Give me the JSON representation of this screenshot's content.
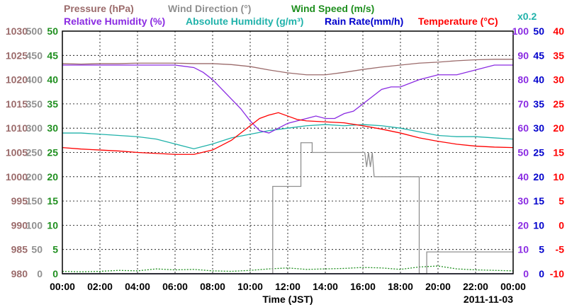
{
  "chart_data": {
    "type": "line",
    "date": "2011-11-03",
    "x_label": "Time (JST)",
    "x_ticks": [
      "00:00",
      "02:00",
      "04:00",
      "06:00",
      "08:00",
      "10:00",
      "12:00",
      "14:00",
      "16:00",
      "18:00",
      "20:00",
      "22:00",
      "00:00"
    ],
    "x_range_hours": [
      0,
      24
    ],
    "grid": true,
    "legend": {
      "row1": [
        {
          "text": "Pressure (hPa)",
          "color": "#9b6b6b"
        },
        {
          "text": "Wind Direction (°)",
          "color": "#909090"
        },
        {
          "text": "Wind Speed (m/s)",
          "color": "#1f8f1f"
        }
      ],
      "row2": [
        {
          "text": "Relative Humidity (%)",
          "color": "#8a2be2"
        },
        {
          "text": "Absolute Humidity (g/m³)",
          "color": "#20b2aa"
        },
        {
          "text": "Rain Rate(mm/h)",
          "color": "#0000cc"
        },
        {
          "text": "Temperature (°C)",
          "color": "#ff0000"
        }
      ],
      "multiplier_note": {
        "text": "x0.2",
        "color": "#20b2aa"
      }
    },
    "axes": {
      "pressure": {
        "color": "#9b6b6b",
        "range": [
          980,
          1030
        ],
        "ticks": [
          "1030",
          "1025",
          "1020",
          "1015",
          "1010",
          "1005",
          "1000",
          "995",
          "990",
          "985",
          "980"
        ]
      },
      "wind_dir": {
        "color": "#909090",
        "range": [
          0,
          500
        ],
        "ticks": [
          "500",
          "450",
          "400",
          "350",
          "300",
          "250",
          "200",
          "150",
          "100",
          "50",
          "0"
        ]
      },
      "wind_speed": {
        "color": "#1f8f1f",
        "range": [
          0,
          50
        ],
        "ticks": [
          "50",
          "45",
          "40",
          "35",
          "30",
          "25",
          "20",
          "15",
          "10",
          "5",
          "0"
        ]
      },
      "rel_hum": {
        "color": "#8a2be2",
        "range": [
          0,
          100
        ],
        "ticks": [
          "100",
          "90",
          "80",
          "70",
          "60",
          "50",
          "40",
          "30",
          "20",
          "10",
          "0"
        ]
      },
      "rain": {
        "color": "#0000cc",
        "range": [
          0,
          50
        ],
        "ticks": [
          "50",
          "45",
          "40",
          "35",
          "30",
          "25",
          "20",
          "15",
          "10",
          "5",
          "0"
        ]
      },
      "temp": {
        "color": "#ff0000",
        "range": [
          -10,
          40
        ],
        "ticks": [
          "40",
          "35",
          "30",
          "25",
          "20",
          "15",
          "10",
          "5",
          "0",
          "-5",
          "-10"
        ]
      }
    },
    "series": [
      {
        "name": "Pressure (hPa)",
        "axis": "pressure",
        "color": "#9b6b6b",
        "x": [
          0,
          1,
          2,
          3,
          4,
          5,
          6,
          7,
          8,
          9,
          10,
          11,
          12,
          13,
          14,
          15,
          16,
          17,
          18,
          19,
          20,
          21,
          22,
          23,
          24
        ],
        "y": [
          1023.3,
          1023.2,
          1023.3,
          1023.3,
          1023.4,
          1023.4,
          1023.4,
          1023.3,
          1023.3,
          1023.1,
          1022.7,
          1022.0,
          1021.4,
          1021.0,
          1021.0,
          1021.5,
          1022.1,
          1022.6,
          1023.0,
          1023.4,
          1023.6,
          1023.9,
          1024.1,
          1024.2,
          1024.2
        ]
      },
      {
        "name": "Wind Direction (°)",
        "axis": "wind_dir",
        "color": "#909090",
        "x": [
          0,
          11.2,
          11.2,
          12.7,
          12.7,
          13.3,
          13.3,
          16.1,
          16.2,
          16.3,
          16.4,
          16.5,
          16.6,
          16.6,
          19.0,
          19.0,
          19.4,
          19.4,
          24
        ],
        "y": [
          0,
          0,
          180,
          180,
          270,
          270,
          250,
          250,
          220,
          250,
          220,
          250,
          200,
          200,
          200,
          0,
          0,
          45,
          45
        ]
      },
      {
        "name": "Wind Speed (m/s)",
        "axis": "wind_speed",
        "color": "#1f8f1f",
        "x": [
          0,
          1,
          2,
          3,
          4,
          5,
          6,
          7,
          8,
          9,
          10,
          11,
          12,
          13,
          14,
          15,
          16,
          17,
          18,
          19,
          20,
          21,
          22,
          23,
          24
        ],
        "y": [
          0.5,
          0.4,
          0.5,
          0.7,
          0.6,
          1.0,
          0.8,
          0.9,
          0.6,
          0.5,
          0.7,
          1.0,
          1.2,
          0.9,
          1.0,
          1.1,
          1.3,
          1.2,
          0.9,
          1.4,
          1.6,
          1.0,
          0.8,
          0.7,
          0.6
        ]
      },
      {
        "name": "Relative Humidity (%)",
        "axis": "rel_hum",
        "color": "#8a2be2",
        "x": [
          0,
          1,
          2,
          3,
          4,
          5,
          6,
          7,
          7.5,
          8,
          8.5,
          9,
          9.5,
          10,
          10.5,
          11,
          11.5,
          12,
          12.5,
          13,
          13.5,
          14,
          14.5,
          15,
          15.5,
          16,
          16.5,
          17,
          17.5,
          18,
          19,
          20,
          21,
          22,
          23,
          24
        ],
        "y": [
          86,
          86,
          86,
          86,
          86,
          86,
          86,
          85,
          83,
          80,
          76,
          72,
          68,
          63,
          59,
          58,
          60,
          62,
          63,
          64,
          65,
          64,
          64,
          66,
          67,
          70,
          73,
          76,
          77,
          77,
          80,
          82,
          82,
          84,
          86,
          86
        ]
      },
      {
        "name": "Absolute Humidity (g/m³)",
        "axis": "rel_hum",
        "color": "#20b2aa",
        "x": [
          0,
          1,
          2,
          3,
          4,
          5,
          6,
          7,
          8,
          9,
          10,
          11,
          12,
          13,
          14,
          15,
          16,
          17,
          18,
          19,
          20,
          21,
          22,
          23,
          24
        ],
        "y": [
          58,
          58,
          57.5,
          57,
          56.5,
          55.5,
          53.5,
          51.5,
          53.5,
          56,
          57.5,
          59,
          60,
          61,
          61.5,
          61,
          61.5,
          61,
          60,
          58.5,
          57,
          56.5,
          56.5,
          56,
          55.5
        ]
      },
      {
        "name": "Rain Rate(mm/h)",
        "axis": "rain",
        "color": "#0000cc",
        "x": [
          0,
          24
        ],
        "y": [
          0,
          0
        ]
      },
      {
        "name": "Temperature (°C)",
        "axis": "temp",
        "color": "#ff0000",
        "x": [
          0,
          1,
          2,
          3,
          4,
          5,
          6,
          7,
          8,
          9,
          10,
          10.5,
          11,
          11.5,
          12,
          12.5,
          13,
          14,
          15,
          16,
          17,
          18,
          19,
          20,
          21,
          22,
          23,
          24
        ],
        "y": [
          16,
          15.7,
          15.5,
          15.3,
          15,
          14.8,
          14.6,
          14.6,
          15.5,
          17.5,
          20.5,
          22,
          22.7,
          23.2,
          22.5,
          21.8,
          21.5,
          21.3,
          21.1,
          20.5,
          19.8,
          19.0,
          18.0,
          17.3,
          16.7,
          16.3,
          16.1,
          16.0
        ]
      }
    ]
  }
}
